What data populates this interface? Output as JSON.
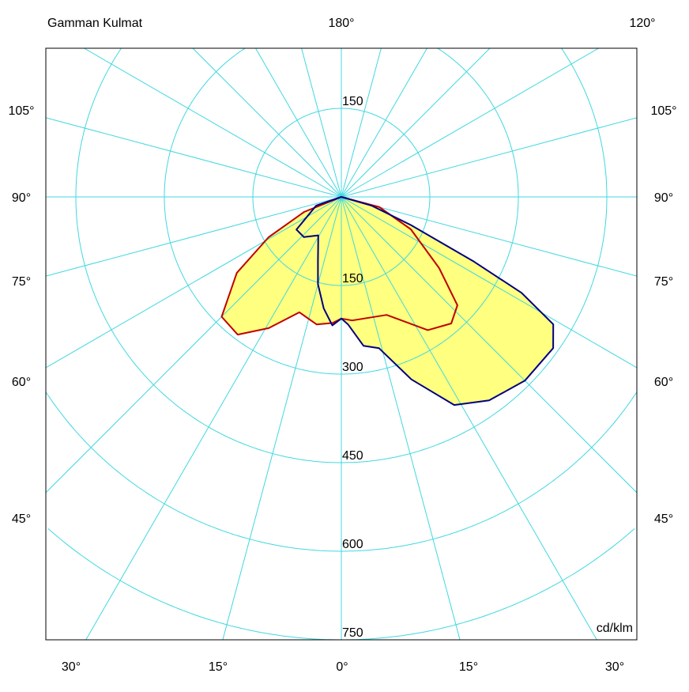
{
  "chart_data": {
    "type": "polar",
    "title": "Gamman Kulmat",
    "unit_label": "cd/klm",
    "radial_ticks": [
      150,
      300,
      450,
      600,
      750
    ],
    "radial_max": 750,
    "radial_upper_label": "150",
    "angle_step_deg": 15,
    "angle_labels": {
      "top_center": "180°",
      "top_right": "120°",
      "left": [
        "105°",
        "90°",
        "75°",
        "60°",
        "45°"
      ],
      "right": [
        "105°",
        "90°",
        "75°",
        "60°",
        "45°"
      ],
      "bottom": [
        "30°",
        "15°",
        "0°",
        "15°",
        "30°"
      ]
    },
    "grid": true,
    "colors": {
      "grid": "#40d8e0",
      "fill": "#ffff80",
      "c0_c180": "#c00000",
      "c90_c270": "#000080",
      "frame": "#000000"
    },
    "series": [
      {
        "id": "c0_c180",
        "color": "#c00000",
        "points": [
          [
            -90,
            0
          ],
          [
            -68,
            68
          ],
          [
            -61,
            141
          ],
          [
            -54,
            219
          ],
          [
            -45,
            287
          ],
          [
            -37,
            292
          ],
          [
            -29,
            254
          ],
          [
            -20,
            208
          ],
          [
            -11,
            220
          ],
          [
            -4,
            214
          ],
          [
            0,
            206
          ],
          [
            5,
            210
          ],
          [
            21,
            214
          ],
          [
            33,
            269
          ],
          [
            41,
            284
          ],
          [
            47,
            269
          ],
          [
            54,
            205
          ],
          [
            65,
            130
          ],
          [
            75,
            67
          ],
          [
            90,
            0
          ]
        ]
      },
      {
        "id": "c90_c270",
        "color": "#000080",
        "points": [
          [
            -90,
            0
          ],
          [
            -71,
            45
          ],
          [
            -54,
            94
          ],
          [
            -43,
            93
          ],
          [
            -31,
            76
          ],
          [
            -20,
            116
          ],
          [
            -15,
            153
          ],
          [
            -9,
            191
          ],
          [
            -4,
            218
          ],
          [
            0,
            206
          ],
          [
            3,
            216
          ],
          [
            8.5,
            255
          ],
          [
            14,
            264
          ],
          [
            21,
            331
          ],
          [
            28.5,
            401
          ],
          [
            36,
            426
          ],
          [
            45,
            440
          ],
          [
            54.5,
            441
          ],
          [
            59,
            419
          ],
          [
            62,
            346
          ],
          [
            64,
            250
          ],
          [
            68,
            127
          ],
          [
            74,
            53
          ],
          [
            90,
            0
          ]
        ]
      }
    ]
  }
}
